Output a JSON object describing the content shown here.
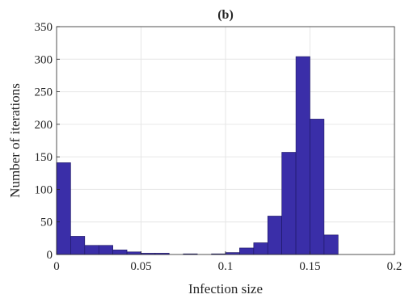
{
  "chart_data": {
    "type": "bar",
    "title": "(b)",
    "xlabel": "Infection size",
    "ylabel": "Number of iterations",
    "xlim": [
      0,
      0.2
    ],
    "ylim": [
      0,
      350
    ],
    "xticks": [
      0,
      0.05,
      0.1,
      0.15,
      0.2
    ],
    "xtick_labels": [
      "0",
      "0.05",
      "0.1",
      "0.15",
      "0.2"
    ],
    "yticks": [
      0,
      50,
      100,
      150,
      200,
      250,
      300,
      350
    ],
    "ytick_labels": [
      "0",
      "50",
      "100",
      "150",
      "200",
      "250",
      "300",
      "350"
    ],
    "grid": true,
    "bin_width": 0.00833,
    "bin_edges": [
      0,
      0.00833,
      0.01667,
      0.025,
      0.03333,
      0.04167,
      0.05,
      0.05833,
      0.06667,
      0.075,
      0.08333,
      0.09167,
      0.1,
      0.10833,
      0.11667,
      0.125,
      0.13333,
      0.14167,
      0.15,
      0.15833,
      0.16667
    ],
    "values": [
      141,
      28,
      14,
      14,
      7,
      4,
      2,
      2,
      0,
      1,
      0,
      1,
      3,
      10,
      18,
      59,
      157,
      304,
      208,
      30
    ],
    "colors": {
      "bar_fill": "#3a2ea8",
      "bar_edge": "#1c1660",
      "grid": "#e6e6e6",
      "axis": "#262626"
    }
  }
}
